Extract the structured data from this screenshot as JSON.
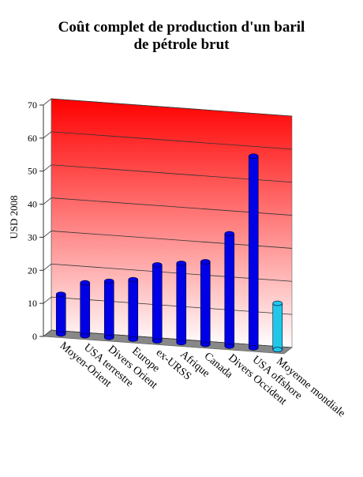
{
  "chart_data": {
    "type": "bar3d",
    "title": [
      "Coût complet de production d'un baril",
      "de pétrole brut"
    ],
    "y_label": "USD 2008",
    "categories": [
      "Moyen-Orient",
      "USA terrestre",
      "Divers Orient",
      "Europe",
      "ex-URSS",
      "Afrique",
      "Canada",
      "Divers Occident",
      "USA offshore",
      "Moyenne mondiale"
    ],
    "values": [
      12,
      16,
      17,
      18,
      23,
      24,
      25,
      34,
      58,
      14
    ],
    "colors": [
      "#0000e6",
      "#0000e6",
      "#0000e6",
      "#0000e6",
      "#0000e6",
      "#0000e6",
      "#0000e6",
      "#0000e6",
      "#0000e6",
      "#20c8e8"
    ],
    "ylim": [
      0,
      70
    ],
    "yticks": [
      0,
      10,
      20,
      30,
      40,
      50,
      60,
      70
    ],
    "grid": true
  }
}
